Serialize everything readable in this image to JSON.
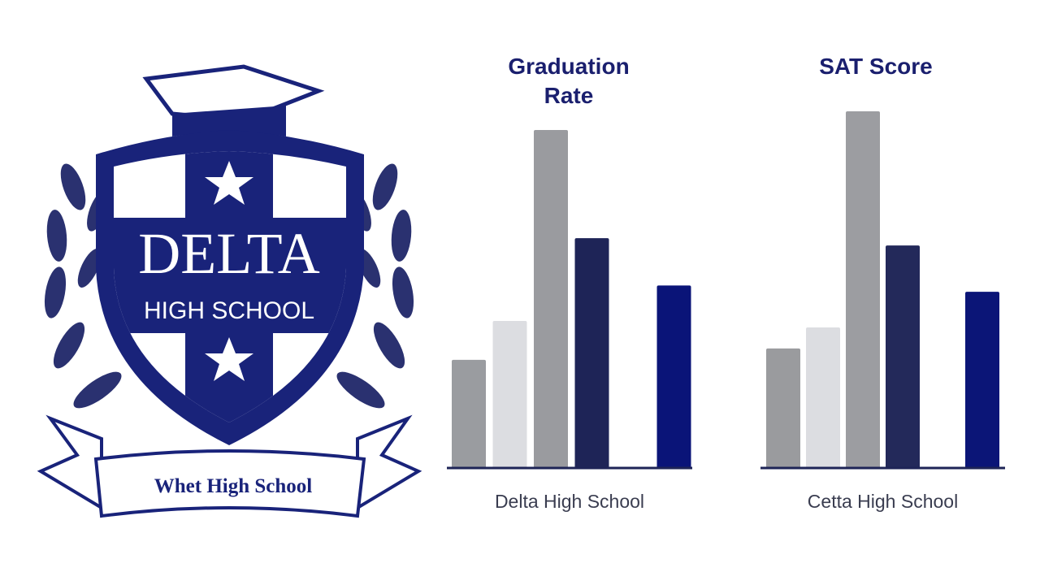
{
  "logo": {
    "name": "DELTA",
    "subtitle": "HIGH SCHOOL",
    "banner": "Whet High School"
  },
  "chart_data": [
    {
      "type": "bar",
      "title": "Graduation Rate",
      "x_label": "Delta High School",
      "categories": [
        null,
        null,
        null,
        null,
        null,
        null
      ],
      "values": [
        32,
        43.5,
        100,
        68,
        null,
        54
      ],
      "colors": [
        "#9a9ca0",
        "#dcdde1",
        "#9a9b9f",
        "#1e2457",
        null,
        "#0a1478"
      ],
      "ylim": [
        0,
        100
      ]
    },
    {
      "type": "bar",
      "title": "SAT Score",
      "x_label": "Cetta High School",
      "categories": [
        null,
        null,
        null,
        null,
        null,
        null
      ],
      "values": [
        33.5,
        39.4,
        100,
        62.4,
        null,
        49.4
      ],
      "colors": [
        "#9a9b9e",
        "#dcdde1",
        "#9c9da1",
        "#23295a",
        null,
        "#0b1577"
      ],
      "ylim": [
        0,
        100
      ]
    }
  ]
}
